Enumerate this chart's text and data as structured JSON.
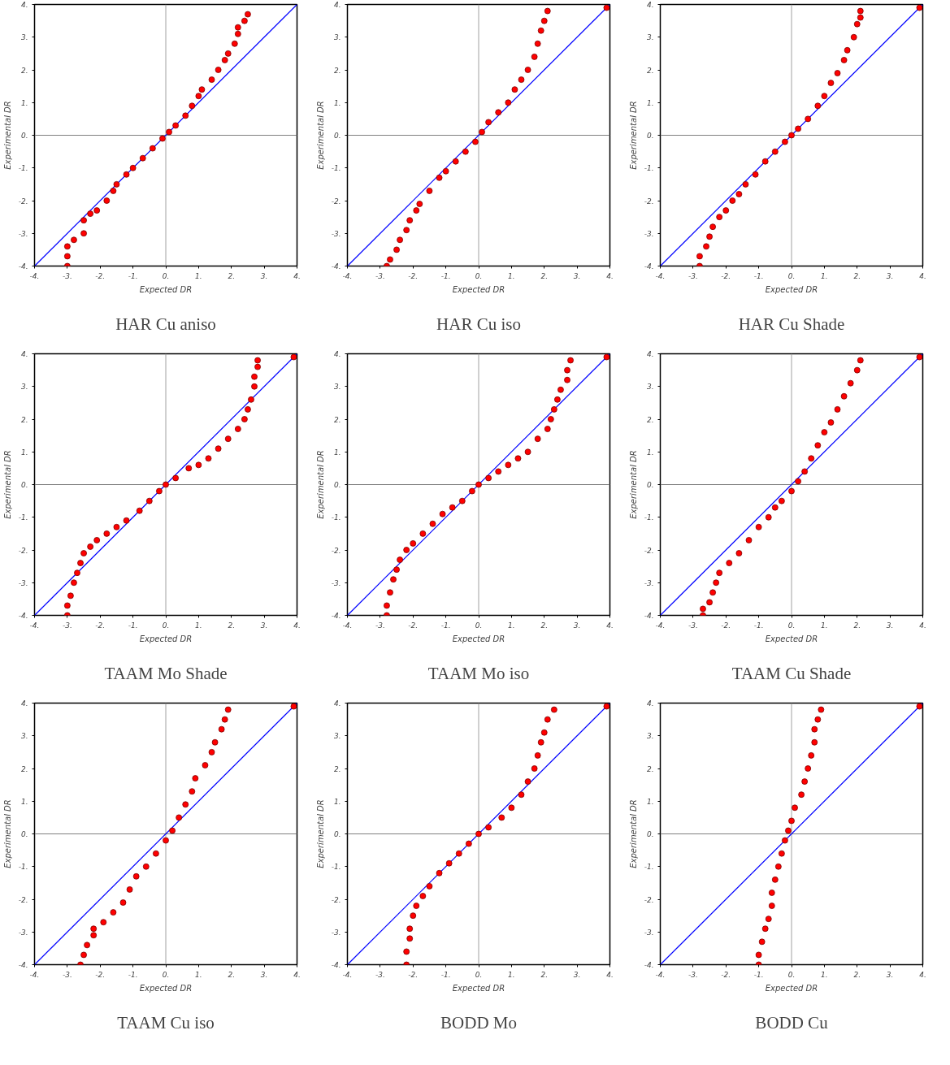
{
  "chart_data": [
    {
      "type": "scatter",
      "title": "HAR Cu aniso",
      "xlabel": "Expected DR",
      "ylabel": "Experimental DR",
      "marker": "circle",
      "grid": false,
      "xlim": [
        -4,
        4
      ],
      "ylim": [
        -4,
        4
      ],
      "xticks": [
        {
          "value": -4,
          "label": "-4."
        },
        {
          "value": -3,
          "label": "-3."
        },
        {
          "value": -2,
          "label": "-2."
        },
        {
          "value": -1,
          "label": "-1."
        },
        {
          "value": 0,
          "label": "0."
        },
        {
          "value": 1,
          "label": "1."
        },
        {
          "value": 2,
          "label": "2."
        },
        {
          "value": 3,
          "label": "3."
        },
        {
          "value": 4,
          "label": "4."
        }
      ],
      "yticks": [
        {
          "value": -4,
          "label": "-4."
        },
        {
          "value": -3,
          "label": "-3."
        },
        {
          "value": -2,
          "label": "-2."
        },
        {
          "value": -1,
          "label": "-1."
        },
        {
          "value": 0,
          "label": "0."
        },
        {
          "value": 1,
          "label": "1."
        },
        {
          "value": 2,
          "label": "2."
        },
        {
          "value": 3,
          "label": "3."
        },
        {
          "value": 4,
          "label": "4."
        }
      ],
      "ref_lines": [
        {
          "axis": "x",
          "value": 0,
          "color": "#a0a0a0"
        },
        {
          "axis": "y",
          "value": 0,
          "color": "#808080"
        }
      ],
      "series": [
        {
          "type": "line",
          "marker": "none",
          "color": "#0000ff",
          "x": [
            -4,
            4
          ],
          "values": [
            -4,
            4
          ]
        },
        {
          "color": "#ff0000",
          "x": [
            -3,
            -3,
            -3,
            -2.8,
            -2.5,
            -2.5,
            -2.3,
            -2.1,
            -1.8,
            -1.6,
            -1.5,
            -1.2,
            -1,
            -0.7,
            -0.4,
            -0.1,
            0.1,
            0.3,
            0.6,
            0.8,
            1,
            1.1,
            1.4,
            1.6,
            1.8,
            1.9,
            2.1,
            2.2,
            2.2,
            2.4,
            2.5
          ],
          "values": [
            -4,
            -3.7,
            -3.4,
            -3.2,
            -3,
            -2.6,
            -2.4,
            -2.3,
            -2,
            -1.7,
            -1.5,
            -1.2,
            -1,
            -0.7,
            -0.4,
            -0.1,
            0.1,
            0.3,
            0.6,
            0.9,
            1.2,
            1.4,
            1.7,
            2,
            2.3,
            2.5,
            2.8,
            3.1,
            3.3,
            3.5,
            3.7
          ]
        }
      ]
    },
    {
      "type": "scatter",
      "title": "HAR Cu iso",
      "xlabel": "Expected DR",
      "ylabel": "Experimental DR",
      "marker": "circle",
      "grid": false,
      "xlim": [
        -4,
        4
      ],
      "ylim": [
        -4,
        4
      ],
      "xticks": [
        {
          "value": -4,
          "label": "-4."
        },
        {
          "value": -3,
          "label": "-3."
        },
        {
          "value": -2,
          "label": "-2."
        },
        {
          "value": -1,
          "label": "-1."
        },
        {
          "value": 0,
          "label": "0."
        },
        {
          "value": 1,
          "label": "1."
        },
        {
          "value": 2,
          "label": "2."
        },
        {
          "value": 3,
          "label": "3."
        },
        {
          "value": 4,
          "label": "4."
        }
      ],
      "yticks": [
        {
          "value": -4,
          "label": "-4."
        },
        {
          "value": -3,
          "label": "-3."
        },
        {
          "value": -2,
          "label": "-2."
        },
        {
          "value": -1,
          "label": "-1."
        },
        {
          "value": 0,
          "label": "0."
        },
        {
          "value": 1,
          "label": "1."
        },
        {
          "value": 2,
          "label": "2."
        },
        {
          "value": 3,
          "label": "3."
        },
        {
          "value": 4,
          "label": "4."
        }
      ],
      "ref_lines": [
        {
          "axis": "x",
          "value": 0,
          "color": "#a0a0a0"
        },
        {
          "axis": "y",
          "value": 0,
          "color": "#808080"
        }
      ],
      "series": [
        {
          "type": "line",
          "marker": "none",
          "color": "#0000ff",
          "x": [
            -4,
            4
          ],
          "values": [
            -4,
            4
          ]
        },
        {
          "color": "#ff0000",
          "x": [
            -2.8,
            -2.7,
            -2.5,
            -2.4,
            -2.2,
            -2.1,
            -1.9,
            -1.8,
            -1.5,
            -1.2,
            -1,
            -0.7,
            -0.4,
            -0.1,
            0.1,
            0.3,
            0.6,
            0.9,
            1.1,
            1.3,
            1.5,
            1.7,
            1.8,
            1.9,
            2,
            2.1,
            3.9
          ],
          "values": [
            -4,
            -3.8,
            -3.5,
            -3.2,
            -2.9,
            -2.6,
            -2.3,
            -2.1,
            -1.7,
            -1.3,
            -1.1,
            -0.8,
            -0.5,
            -0.2,
            0.1,
            0.4,
            0.7,
            1,
            1.4,
            1.7,
            2,
            2.4,
            2.8,
            3.2,
            3.5,
            3.8,
            3.9
          ]
        }
      ]
    },
    {
      "type": "scatter",
      "title": "HAR Cu Shade",
      "xlabel": "Expected DR",
      "ylabel": "Experimental DR",
      "marker": "circle",
      "grid": false,
      "xlim": [
        -4,
        4
      ],
      "ylim": [
        -4,
        4
      ],
      "xticks": [
        {
          "value": -4,
          "label": "-4."
        },
        {
          "value": -3,
          "label": "-3."
        },
        {
          "value": -2,
          "label": "-2."
        },
        {
          "value": -1,
          "label": "-1."
        },
        {
          "value": 0,
          "label": "0."
        },
        {
          "value": 1,
          "label": "1."
        },
        {
          "value": 2,
          "label": "2."
        },
        {
          "value": 3,
          "label": "3."
        },
        {
          "value": 4,
          "label": "4."
        }
      ],
      "yticks": [
        {
          "value": -4,
          "label": "-4."
        },
        {
          "value": -3,
          "label": "-3."
        },
        {
          "value": -2,
          "label": "-2."
        },
        {
          "value": -1,
          "label": "-1."
        },
        {
          "value": 0,
          "label": "0."
        },
        {
          "value": 1,
          "label": "1."
        },
        {
          "value": 2,
          "label": "2."
        },
        {
          "value": 3,
          "label": "3."
        },
        {
          "value": 4,
          "label": "4."
        }
      ],
      "ref_lines": [
        {
          "axis": "x",
          "value": 0,
          "color": "#a0a0a0"
        },
        {
          "axis": "y",
          "value": 0,
          "color": "#808080"
        }
      ],
      "series": [
        {
          "type": "line",
          "marker": "none",
          "color": "#0000ff",
          "x": [
            -4,
            4
          ],
          "values": [
            -4,
            4
          ]
        },
        {
          "color": "#ff0000",
          "x": [
            -2.8,
            -2.8,
            -2.6,
            -2.5,
            -2.4,
            -2.2,
            -2,
            -1.8,
            -1.6,
            -1.4,
            -1.1,
            -0.8,
            -0.5,
            -0.2,
            0,
            0.2,
            0.5,
            0.8,
            1,
            1.2,
            1.4,
            1.6,
            1.7,
            1.9,
            2,
            2.1,
            2.1,
            3.9
          ],
          "values": [
            -4,
            -3.7,
            -3.4,
            -3.1,
            -2.8,
            -2.5,
            -2.3,
            -2,
            -1.8,
            -1.5,
            -1.2,
            -0.8,
            -0.5,
            -0.2,
            0,
            0.2,
            0.5,
            0.9,
            1.2,
            1.6,
            1.9,
            2.3,
            2.6,
            3,
            3.4,
            3.6,
            3.8,
            3.9
          ]
        }
      ]
    },
    {
      "type": "scatter",
      "title": "TAAM Mo Shade",
      "xlabel": "Expected DR",
      "ylabel": "Experimental DR",
      "marker": "circle",
      "grid": false,
      "xlim": [
        -4,
        4
      ],
      "ylim": [
        -4,
        4
      ],
      "xticks": [
        {
          "value": -4,
          "label": "-4."
        },
        {
          "value": -3,
          "label": "-3."
        },
        {
          "value": -2,
          "label": "-2."
        },
        {
          "value": -1,
          "label": "-1."
        },
        {
          "value": 0,
          "label": "0."
        },
        {
          "value": 1,
          "label": "1."
        },
        {
          "value": 2,
          "label": "2."
        },
        {
          "value": 3,
          "label": "3."
        },
        {
          "value": 4,
          "label": "4."
        }
      ],
      "yticks": [
        {
          "value": -4,
          "label": "-4."
        },
        {
          "value": -3,
          "label": "-3."
        },
        {
          "value": -2,
          "label": "-2."
        },
        {
          "value": -1,
          "label": "-1."
        },
        {
          "value": 0,
          "label": "0."
        },
        {
          "value": 1,
          "label": "1."
        },
        {
          "value": 2,
          "label": "2."
        },
        {
          "value": 3,
          "label": "3."
        },
        {
          "value": 4,
          "label": "4."
        }
      ],
      "ref_lines": [
        {
          "axis": "x",
          "value": 0,
          "color": "#a0a0a0"
        },
        {
          "axis": "y",
          "value": 0,
          "color": "#808080"
        }
      ],
      "series": [
        {
          "type": "line",
          "marker": "none",
          "color": "#0000ff",
          "x": [
            -4,
            4
          ],
          "values": [
            -4,
            4
          ]
        },
        {
          "color": "#ff0000",
          "x": [
            -3,
            -3,
            -2.9,
            -2.8,
            -2.7,
            -2.6,
            -2.5,
            -2.3,
            -2.1,
            -1.8,
            -1.5,
            -1.2,
            -0.8,
            -0.5,
            -0.2,
            0,
            0.3,
            0.7,
            1,
            1.3,
            1.6,
            1.9,
            2.2,
            2.4,
            2.5,
            2.6,
            2.7,
            2.7,
            2.8,
            2.8,
            3.9
          ],
          "values": [
            -4,
            -3.7,
            -3.4,
            -3,
            -2.7,
            -2.4,
            -2.1,
            -1.9,
            -1.7,
            -1.5,
            -1.3,
            -1.1,
            -0.8,
            -0.5,
            -0.2,
            0,
            0.2,
            0.5,
            0.6,
            0.8,
            1.1,
            1.4,
            1.7,
            2,
            2.3,
            2.6,
            3,
            3.3,
            3.6,
            3.8,
            3.9
          ]
        }
      ]
    },
    {
      "type": "scatter",
      "title": "TAAM Mo iso",
      "xlabel": "Expected DR",
      "ylabel": "Experimental DR",
      "marker": "circle",
      "grid": false,
      "xlim": [
        -4,
        4
      ],
      "ylim": [
        -4,
        4
      ],
      "xticks": [
        {
          "value": -4,
          "label": "-4."
        },
        {
          "value": -3,
          "label": "-3."
        },
        {
          "value": -2,
          "label": "-2."
        },
        {
          "value": -1,
          "label": "-1."
        },
        {
          "value": 0,
          "label": "0."
        },
        {
          "value": 1,
          "label": "1."
        },
        {
          "value": 2,
          "label": "2."
        },
        {
          "value": 3,
          "label": "3."
        },
        {
          "value": 4,
          "label": "4."
        }
      ],
      "yticks": [
        {
          "value": -4,
          "label": "-4."
        },
        {
          "value": -3,
          "label": "-3."
        },
        {
          "value": -2,
          "label": "-2."
        },
        {
          "value": -1,
          "label": "-1."
        },
        {
          "value": 0,
          "label": "0."
        },
        {
          "value": 1,
          "label": "1."
        },
        {
          "value": 2,
          "label": "2."
        },
        {
          "value": 3,
          "label": "3."
        },
        {
          "value": 4,
          "label": "4."
        }
      ],
      "ref_lines": [
        {
          "axis": "x",
          "value": 0,
          "color": "#a0a0a0"
        },
        {
          "axis": "y",
          "value": 0,
          "color": "#808080"
        }
      ],
      "series": [
        {
          "type": "line",
          "marker": "none",
          "color": "#0000ff",
          "x": [
            -4,
            4
          ],
          "values": [
            -4,
            4
          ]
        },
        {
          "color": "#ff0000",
          "x": [
            -2.8,
            -2.8,
            -2.7,
            -2.6,
            -2.5,
            -2.4,
            -2.2,
            -2,
            -1.7,
            -1.4,
            -1.1,
            -0.8,
            -0.5,
            -0.2,
            0,
            0.3,
            0.6,
            0.9,
            1.2,
            1.5,
            1.8,
            2.1,
            2.2,
            2.3,
            2.4,
            2.5,
            2.7,
            2.7,
            2.8,
            3.9
          ],
          "values": [
            -4,
            -3.7,
            -3.3,
            -2.9,
            -2.6,
            -2.3,
            -2,
            -1.8,
            -1.5,
            -1.2,
            -0.9,
            -0.7,
            -0.5,
            -0.2,
            0,
            0.2,
            0.4,
            0.6,
            0.8,
            1,
            1.4,
            1.7,
            2,
            2.3,
            2.6,
            2.9,
            3.2,
            3.5,
            3.8,
            3.9
          ]
        }
      ]
    },
    {
      "type": "scatter",
      "title": "TAAM Cu Shade",
      "xlabel": "Expected DR",
      "ylabel": "Experimental DR",
      "marker": "circle",
      "grid": false,
      "xlim": [
        -4,
        4
      ],
      "ylim": [
        -4,
        4
      ],
      "xticks": [
        {
          "value": -4,
          "label": "-4."
        },
        {
          "value": -3,
          "label": "-3."
        },
        {
          "value": -2,
          "label": "-2."
        },
        {
          "value": -1,
          "label": "-1."
        },
        {
          "value": 0,
          "label": "0."
        },
        {
          "value": 1,
          "label": "1."
        },
        {
          "value": 2,
          "label": "2."
        },
        {
          "value": 3,
          "label": "3."
        },
        {
          "value": 4,
          "label": "4."
        }
      ],
      "yticks": [
        {
          "value": -4,
          "label": "-4."
        },
        {
          "value": -3,
          "label": "-3."
        },
        {
          "value": -2,
          "label": "-2."
        },
        {
          "value": -1,
          "label": "-1."
        },
        {
          "value": 0,
          "label": "0."
        },
        {
          "value": 1,
          "label": "1."
        },
        {
          "value": 2,
          "label": "2."
        },
        {
          "value": 3,
          "label": "3."
        },
        {
          "value": 4,
          "label": "4."
        }
      ],
      "ref_lines": [
        {
          "axis": "x",
          "value": 0,
          "color": "#a0a0a0"
        },
        {
          "axis": "y",
          "value": 0,
          "color": "#808080"
        }
      ],
      "series": [
        {
          "type": "line",
          "marker": "none",
          "color": "#0000ff",
          "x": [
            -4,
            4
          ],
          "values": [
            -4,
            4
          ]
        },
        {
          "color": "#ff0000",
          "x": [
            -2.7,
            -2.7,
            -2.5,
            -2.4,
            -2.3,
            -2.2,
            -1.9,
            -1.6,
            -1.3,
            -1,
            -0.7,
            -0.5,
            -0.3,
            0,
            0.2,
            0.4,
            0.6,
            0.8,
            1,
            1.2,
            1.4,
            1.6,
            1.8,
            2,
            2.1,
            3.9
          ],
          "values": [
            -4,
            -3.8,
            -3.6,
            -3.3,
            -3,
            -2.7,
            -2.4,
            -2.1,
            -1.7,
            -1.3,
            -1,
            -0.7,
            -0.5,
            -0.2,
            0.1,
            0.4,
            0.8,
            1.2,
            1.6,
            1.9,
            2.3,
            2.7,
            3.1,
            3.5,
            3.8,
            3.9
          ]
        }
      ]
    },
    {
      "type": "scatter",
      "title": "TAAM Cu iso",
      "xlabel": "Expected DR",
      "ylabel": "Experimental DR",
      "marker": "circle",
      "grid": false,
      "xlim": [
        -4,
        4
      ],
      "ylim": [
        -4,
        4
      ],
      "xticks": [
        {
          "value": -4,
          "label": "-4."
        },
        {
          "value": -3,
          "label": "-3."
        },
        {
          "value": -2,
          "label": "-2."
        },
        {
          "value": -1,
          "label": "-1."
        },
        {
          "value": 0,
          "label": "0."
        },
        {
          "value": 1,
          "label": "1."
        },
        {
          "value": 2,
          "label": "2."
        },
        {
          "value": 3,
          "label": "3."
        },
        {
          "value": 4,
          "label": "4."
        }
      ],
      "yticks": [
        {
          "value": -4,
          "label": "-4."
        },
        {
          "value": -3,
          "label": "-3."
        },
        {
          "value": -2,
          "label": "-2."
        },
        {
          "value": -1,
          "label": "-1."
        },
        {
          "value": 0,
          "label": "0."
        },
        {
          "value": 1,
          "label": "1."
        },
        {
          "value": 2,
          "label": "2."
        },
        {
          "value": 3,
          "label": "3."
        },
        {
          "value": 4,
          "label": "4."
        }
      ],
      "ref_lines": [
        {
          "axis": "x",
          "value": 0,
          "color": "#a0a0a0"
        },
        {
          "axis": "y",
          "value": 0,
          "color": "#808080"
        }
      ],
      "series": [
        {
          "type": "line",
          "marker": "none",
          "color": "#0000ff",
          "x": [
            -4,
            4
          ],
          "values": [
            -4,
            4
          ]
        },
        {
          "color": "#ff0000",
          "x": [
            -2.6,
            -2.5,
            -2.4,
            -2.2,
            -2.2,
            -1.9,
            -1.6,
            -1.3,
            -1.1,
            -0.9,
            -0.6,
            -0.3,
            0,
            0.2,
            0.4,
            0.6,
            0.8,
            0.9,
            1.2,
            1.4,
            1.5,
            1.7,
            1.8,
            1.9,
            3.9
          ],
          "values": [
            -4,
            -3.7,
            -3.4,
            -3.1,
            -2.9,
            -2.7,
            -2.4,
            -2.1,
            -1.7,
            -1.3,
            -1,
            -0.6,
            -0.2,
            0.1,
            0.5,
            0.9,
            1.3,
            1.7,
            2.1,
            2.5,
            2.8,
            3.2,
            3.5,
            3.8,
            3.9
          ]
        }
      ]
    },
    {
      "type": "scatter",
      "title": "BODD Mo",
      "xlabel": "Expected DR",
      "ylabel": "Experimental DR",
      "marker": "circle",
      "grid": false,
      "xlim": [
        -4,
        4
      ],
      "ylim": [
        -4,
        4
      ],
      "xticks": [
        {
          "value": -4,
          "label": "-4."
        },
        {
          "value": -3,
          "label": "-3."
        },
        {
          "value": -2,
          "label": "-2."
        },
        {
          "value": -1,
          "label": "-1."
        },
        {
          "value": 0,
          "label": "0."
        },
        {
          "value": 1,
          "label": "1."
        },
        {
          "value": 2,
          "label": "2."
        },
        {
          "value": 3,
          "label": "3."
        },
        {
          "value": 4,
          "label": "4."
        }
      ],
      "yticks": [
        {
          "value": -4,
          "label": "-4."
        },
        {
          "value": -3,
          "label": "-3."
        },
        {
          "value": -2,
          "label": "-2."
        },
        {
          "value": -1,
          "label": "-1."
        },
        {
          "value": 0,
          "label": "0."
        },
        {
          "value": 1,
          "label": "1."
        },
        {
          "value": 2,
          "label": "2."
        },
        {
          "value": 3,
          "label": "3."
        },
        {
          "value": 4,
          "label": "4."
        }
      ],
      "ref_lines": [
        {
          "axis": "x",
          "value": 0,
          "color": "#a0a0a0"
        },
        {
          "axis": "y",
          "value": 0,
          "color": "#808080"
        }
      ],
      "series": [
        {
          "type": "line",
          "marker": "none",
          "color": "#0000ff",
          "x": [
            -4,
            4
          ],
          "values": [
            -4,
            4
          ]
        },
        {
          "color": "#ff0000",
          "x": [
            -2.2,
            -2.2,
            -2.1,
            -2.1,
            -2,
            -1.9,
            -1.7,
            -1.5,
            -1.2,
            -0.9,
            -0.6,
            -0.3,
            0,
            0.3,
            0.7,
            1,
            1.3,
            1.5,
            1.7,
            1.8,
            1.9,
            2,
            2.1,
            2.3,
            3.9
          ],
          "values": [
            -4,
            -3.6,
            -3.2,
            -2.9,
            -2.5,
            -2.2,
            -1.9,
            -1.6,
            -1.2,
            -0.9,
            -0.6,
            -0.3,
            0,
            0.2,
            0.5,
            0.8,
            1.2,
            1.6,
            2,
            2.4,
            2.8,
            3.1,
            3.5,
            3.8,
            3.9
          ]
        }
      ]
    },
    {
      "type": "scatter",
      "title": "BODD Cu",
      "xlabel": "Expected DR",
      "ylabel": "Experimental DR",
      "marker": "circle",
      "grid": false,
      "xlim": [
        -4,
        4
      ],
      "ylim": [
        -4,
        4
      ],
      "xticks": [
        {
          "value": -4,
          "label": "-4."
        },
        {
          "value": -3,
          "label": "-3."
        },
        {
          "value": -2,
          "label": "-2."
        },
        {
          "value": -1,
          "label": "-1."
        },
        {
          "value": 0,
          "label": "0."
        },
        {
          "value": 1,
          "label": "1."
        },
        {
          "value": 2,
          "label": "2."
        },
        {
          "value": 3,
          "label": "3."
        },
        {
          "value": 4,
          "label": "4."
        }
      ],
      "yticks": [
        {
          "value": -4,
          "label": "-4."
        },
        {
          "value": -3,
          "label": "-3."
        },
        {
          "value": -2,
          "label": "-2."
        },
        {
          "value": -1,
          "label": "-1."
        },
        {
          "value": 0,
          "label": "0."
        },
        {
          "value": 1,
          "label": "1."
        },
        {
          "value": 2,
          "label": "2."
        },
        {
          "value": 3,
          "label": "3."
        },
        {
          "value": 4,
          "label": "4."
        }
      ],
      "ref_lines": [
        {
          "axis": "x",
          "value": 0,
          "color": "#a0a0a0"
        },
        {
          "axis": "y",
          "value": 0,
          "color": "#808080"
        }
      ],
      "series": [
        {
          "type": "line",
          "marker": "none",
          "color": "#0000ff",
          "x": [
            -4,
            4
          ],
          "values": [
            -4,
            4
          ]
        },
        {
          "color": "#ff0000",
          "x": [
            -1,
            -1,
            -0.9,
            -0.8,
            -0.7,
            -0.6,
            -0.6,
            -0.5,
            -0.4,
            -0.3,
            -0.2,
            -0.1,
            0,
            0.1,
            0.3,
            0.4,
            0.5,
            0.6,
            0.7,
            0.7,
            0.8,
            0.9,
            3.9
          ],
          "values": [
            -4,
            -3.7,
            -3.3,
            -2.9,
            -2.6,
            -2.2,
            -1.8,
            -1.4,
            -1,
            -0.6,
            -0.2,
            0.1,
            0.4,
            0.8,
            1.2,
            1.6,
            2,
            2.4,
            2.8,
            3.2,
            3.5,
            3.8,
            3.9
          ]
        }
      ]
    }
  ]
}
